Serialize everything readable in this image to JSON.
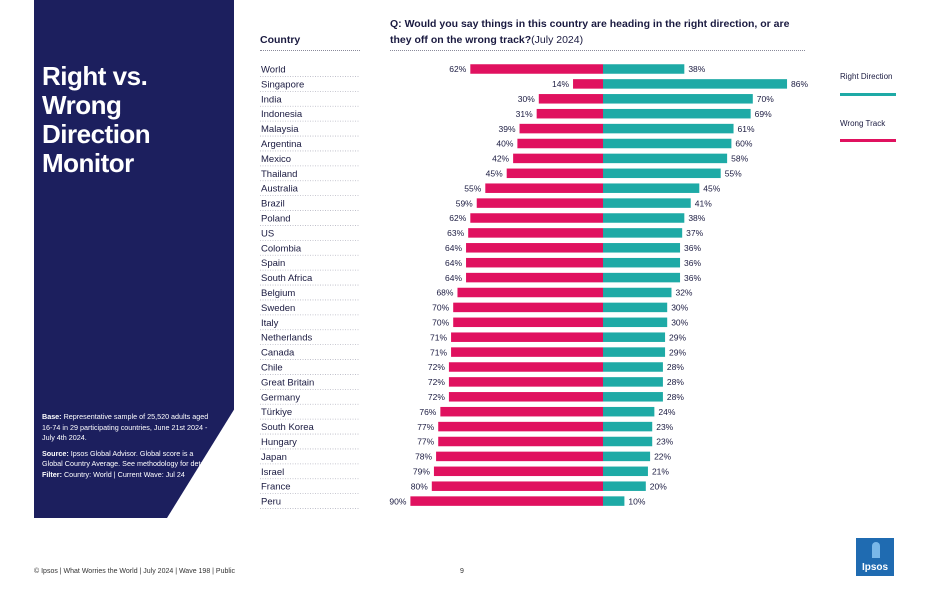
{
  "panel": {
    "title_lines": [
      "Right vs.",
      "Wrong Direction",
      "Monitor"
    ],
    "base_label": "Base:",
    "base_text": "Representative sample of 25,520 adults aged 16-74 in 29 participating countries, June 21st 2024 - July 4th 2024.",
    "source_label": "Source:",
    "source_text": "Ipsos Global Advisor. Global score is a Global Country Average. See methodology for details.",
    "filter_label": "Filter:",
    "filter_text": "Country: World | Current Wave: Jul 24"
  },
  "column_header": "Country",
  "question_bold": "Q: Would you say things in this country are heading in the right direction, or are they off on the wrong track?",
  "question_suffix": "(July 2024)",
  "legend": {
    "right": {
      "label": "Right Direction",
      "color": "#1eaaa6"
    },
    "wrong": {
      "label": "Wrong Track",
      "color": "#e0115f"
    }
  },
  "footer": "© Ipsos | What Worries the World | July 2024 | Wave 198 | Public",
  "page_number": "9",
  "logo_text": "Ipsos",
  "chart_data": {
    "type": "bar",
    "orientation": "diverging-horizontal",
    "categories": [
      "World",
      "Singapore",
      "India",
      "Indonesia",
      "Malaysia",
      "Argentina",
      "Mexico",
      "Thailand",
      "Australia",
      "Brazil",
      "Poland",
      "US",
      "Colombia",
      "Spain",
      "South Africa",
      "Belgium",
      "Sweden",
      "Italy",
      "Netherlands",
      "Canada",
      "Chile",
      "Great Britain",
      "Germany",
      "Türkiye",
      "South Korea",
      "Hungary",
      "Japan",
      "Israel",
      "France",
      "Peru"
    ],
    "series": [
      {
        "name": "Wrong Track",
        "color": "#e0115f",
        "values": [
          62,
          14,
          30,
          31,
          39,
          40,
          42,
          45,
          55,
          59,
          62,
          63,
          64,
          64,
          64,
          68,
          70,
          70,
          71,
          71,
          72,
          72,
          72,
          76,
          77,
          77,
          78,
          79,
          80,
          90
        ]
      },
      {
        "name": "Right Direction",
        "color": "#1eaaa6",
        "values": [
          38,
          86,
          70,
          69,
          61,
          60,
          58,
          55,
          45,
          41,
          38,
          37,
          36,
          36,
          36,
          32,
          30,
          30,
          29,
          29,
          28,
          28,
          28,
          24,
          23,
          23,
          22,
          21,
          20,
          10
        ]
      }
    ],
    "value_suffix": "%",
    "xlim": [
      0,
      100
    ]
  }
}
